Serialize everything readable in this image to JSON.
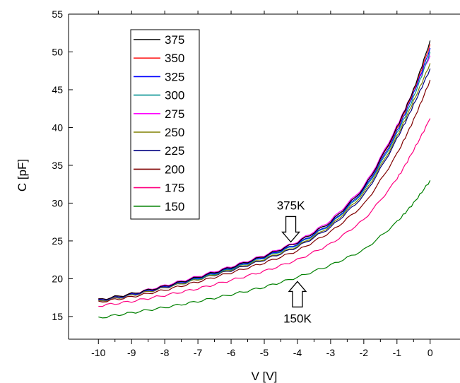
{
  "chart_data": {
    "type": "line",
    "title": "",
    "xlabel": "V [V]",
    "ylabel": "C [pF]",
    "xlim": [
      -10.9,
      0.9
    ],
    "ylim": [
      12,
      55
    ],
    "xticks": [
      -10,
      -9,
      -8,
      -7,
      -6,
      -5,
      -4,
      -3,
      -2,
      -1,
      0
    ],
    "yticks": [
      15,
      20,
      25,
      30,
      35,
      40,
      45,
      50,
      55
    ],
    "grid": false,
    "legend_position": "top-left",
    "x": [
      -10,
      -9,
      -8,
      -7,
      -6,
      -5,
      -4,
      -3,
      -2,
      -1,
      -0.5,
      0
    ],
    "series": [
      {
        "name": "375",
        "color": "#000000",
        "values": [
          17.2,
          18.0,
          19.0,
          20.2,
          21.5,
          23.0,
          24.8,
          27.5,
          32.0,
          40.0,
          45.0,
          51.5
        ]
      },
      {
        "name": "350",
        "color": "#ff2020",
        "values": [
          17.2,
          18.0,
          19.0,
          20.2,
          21.5,
          23.0,
          24.8,
          27.5,
          32.0,
          39.8,
          44.8,
          51.0
        ]
      },
      {
        "name": "325",
        "color": "#0000ff",
        "values": [
          17.1,
          17.9,
          18.9,
          20.1,
          21.4,
          22.9,
          24.6,
          27.3,
          31.8,
          39.5,
          44.5,
          50.5
        ]
      },
      {
        "name": "300",
        "color": "#009090",
        "values": [
          17.1,
          17.9,
          18.9,
          20.0,
          21.3,
          22.8,
          24.5,
          27.2,
          31.6,
          39.2,
          44.0,
          50.0
        ]
      },
      {
        "name": "275",
        "color": "#ff00ff",
        "values": [
          17.2,
          18.0,
          19.1,
          20.3,
          21.6,
          23.1,
          24.9,
          27.7,
          32.2,
          40.2,
          45.0,
          49.5
        ]
      },
      {
        "name": "250",
        "color": "#808000",
        "values": [
          17.0,
          17.8,
          18.8,
          19.9,
          21.2,
          22.6,
          24.3,
          27.0,
          31.3,
          38.8,
          43.5,
          48.5
        ]
      },
      {
        "name": "225",
        "color": "#000080",
        "values": [
          17.0,
          17.8,
          18.8,
          19.9,
          21.1,
          22.5,
          24.2,
          26.8,
          31.0,
          38.5,
          43.0,
          47.8
        ]
      },
      {
        "name": "200",
        "color": "#800000",
        "values": [
          16.9,
          17.6,
          18.5,
          19.6,
          20.8,
          22.1,
          23.7,
          26.2,
          29.8,
          36.5,
          41.0,
          46.3
        ]
      },
      {
        "name": "175",
        "color": "#ff0080",
        "values": [
          16.4,
          17.0,
          17.8,
          18.7,
          19.8,
          21.0,
          22.5,
          24.6,
          27.8,
          33.2,
          37.0,
          41.2
        ]
      },
      {
        "name": "150",
        "color": "#008000",
        "values": [
          14.8,
          15.5,
          16.2,
          17.0,
          17.9,
          18.9,
          20.2,
          21.8,
          23.8,
          27.5,
          30.0,
          33.0
        ]
      }
    ],
    "annotations": [
      {
        "text": "375K",
        "x": -4.2,
        "y": 24.3,
        "direction": "down"
      },
      {
        "text": "150K",
        "x": -4.0,
        "y": 20.0,
        "direction": "up"
      }
    ]
  }
}
